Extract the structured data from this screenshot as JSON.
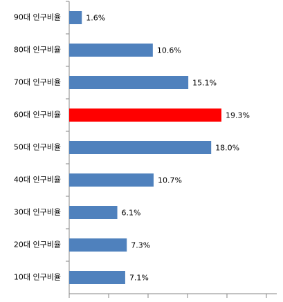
{
  "chart_data": {
    "type": "barh",
    "categories": [
      "90대 인구비율",
      "80대 인구비율",
      "70대 인구비율",
      "60대 인구비율",
      "50대 인구비율",
      "40대 인구비율",
      "30대 인구비율",
      "20대 인구비율",
      "10대 인구비율"
    ],
    "values": [
      1.6,
      10.6,
      15.1,
      19.3,
      18.0,
      10.7,
      6.1,
      7.3,
      7.1
    ],
    "value_labels": [
      "1.6%",
      "10.6%",
      "15.1%",
      "19.3%",
      "18.0%",
      "10.7%",
      "6.1%",
      "7.3%",
      "7.1%"
    ],
    "colors": [
      "#4f81bd",
      "#4f81bd",
      "#4f81bd",
      "#ff0000",
      "#4f81bd",
      "#4f81bd",
      "#4f81bd",
      "#4f81bd",
      "#4f81bd"
    ],
    "xlim": [
      0,
      25
    ],
    "xticks": [
      0,
      5,
      10,
      15,
      20,
      25
    ],
    "grid": false
  }
}
